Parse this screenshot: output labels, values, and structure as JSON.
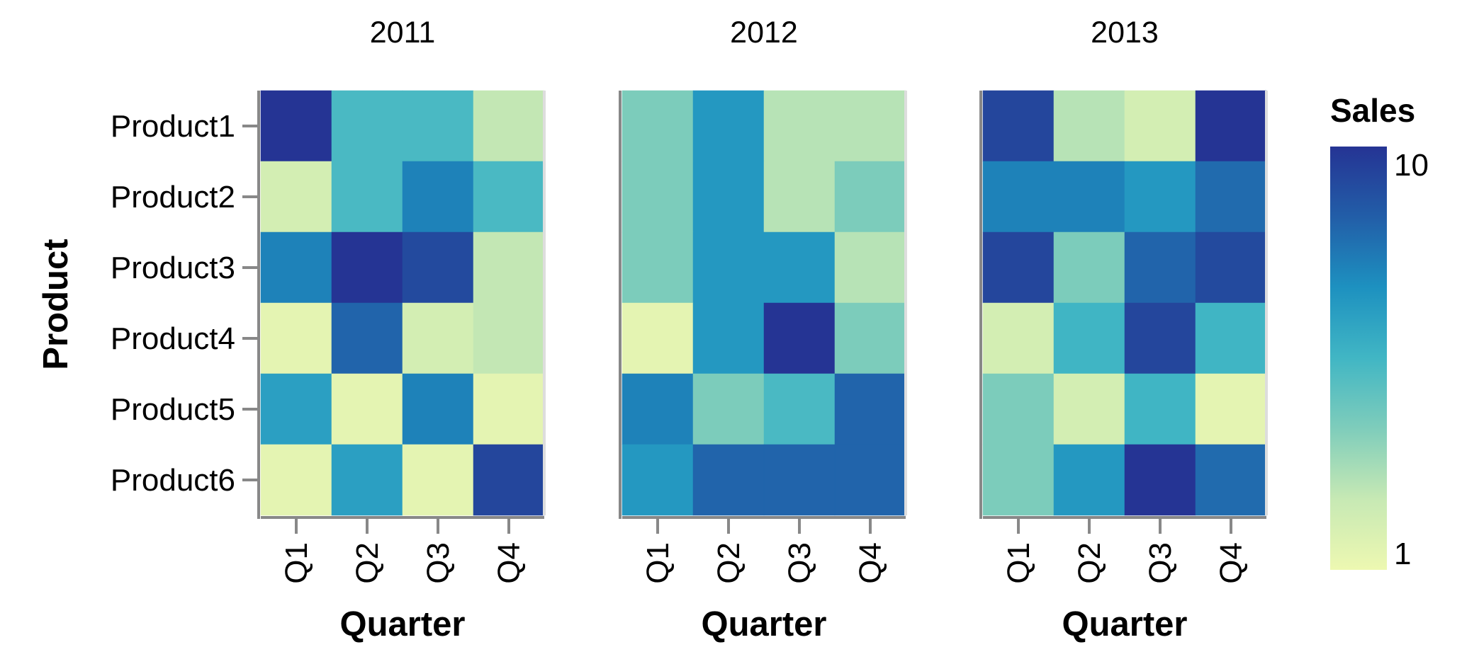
{
  "chart_data": {
    "type": "heatmap",
    "facet_field": "Year",
    "panels": [
      {
        "title": "2011",
        "values": [
          [
            10,
            3,
            3,
            1.5
          ],
          [
            1.3,
            3,
            5.2,
            3
          ],
          [
            5.2,
            10,
            8.2,
            1.5
          ],
          [
            1.1,
            6.5,
            1.3,
            1.5
          ],
          [
            4,
            1.1,
            5.2,
            1.1
          ],
          [
            1.1,
            4,
            1.1,
            8.5
          ]
        ]
      },
      {
        "title": "2012",
        "values": [
          [
            2.2,
            4.3,
            1.6,
            1.6
          ],
          [
            2.2,
            4.3,
            1.6,
            2.2
          ],
          [
            2.2,
            4.3,
            4.3,
            1.6
          ],
          [
            1.1,
            4.3,
            10,
            2.2
          ],
          [
            5.2,
            2.2,
            3,
            6.5
          ],
          [
            4.3,
            6.5,
            6.5,
            6.5
          ]
        ]
      },
      {
        "title": "2013",
        "values": [
          [
            8.5,
            1.6,
            1.3,
            10
          ],
          [
            5.2,
            5.2,
            4.3,
            6.2
          ],
          [
            8.5,
            2.2,
            6.5,
            8.2
          ],
          [
            1.3,
            3.2,
            8.5,
            3.2
          ],
          [
            2.2,
            1.3,
            3.2,
            1.1
          ],
          [
            2.2,
            4.3,
            10,
            6.2
          ]
        ]
      }
    ],
    "x_categories": [
      "Q1",
      "Q2",
      "Q3",
      "Q4"
    ],
    "y_categories": [
      "Product1",
      "Product2",
      "Product3",
      "Product4",
      "Product5",
      "Product6"
    ],
    "xlabel": "Quarter",
    "ylabel": "Product",
    "legend": {
      "title": "Sales",
      "min_label": "1",
      "max_label": "10",
      "scale": "log",
      "placement": "right"
    },
    "color_scale": [
      "#edf8b1",
      "#c7e9b4",
      "#7fcdbb",
      "#41b6c4",
      "#1d91c0",
      "#225ea8",
      "#253494"
    ]
  }
}
